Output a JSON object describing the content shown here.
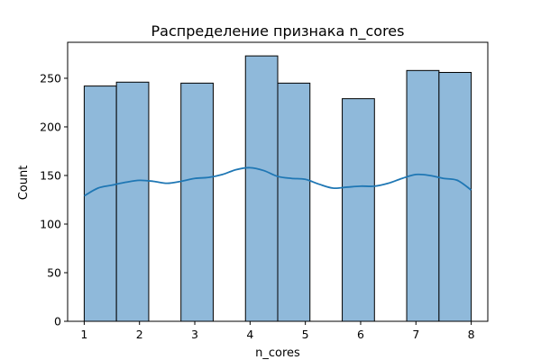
{
  "chart_data": {
    "type": "bar",
    "title": "Распределение признака n_cores",
    "xlabel": "n_cores",
    "ylabel": "Count",
    "xlim": [
      0.7,
      8.3
    ],
    "ylim": [
      0,
      287
    ],
    "x_ticks": [
      1,
      2,
      3,
      4,
      5,
      6,
      7,
      8
    ],
    "y_ticks": [
      0,
      50,
      100,
      150,
      200,
      250
    ],
    "bins": [
      {
        "x0": 1.0,
        "x1": 1.583,
        "count": 242
      },
      {
        "x0": 1.583,
        "x1": 2.167,
        "count": 246
      },
      {
        "x0": 2.75,
        "x1": 3.333,
        "count": 245
      },
      {
        "x0": 3.917,
        "x1": 4.5,
        "count": 273
      },
      {
        "x0": 4.5,
        "x1": 5.083,
        "count": 245
      },
      {
        "x0": 5.667,
        "x1": 6.25,
        "count": 229
      },
      {
        "x0": 6.833,
        "x1": 7.417,
        "count": 258
      },
      {
        "x0": 7.417,
        "x1": 8.0,
        "count": 256
      }
    ],
    "kde": {
      "x": [
        1.0,
        1.25,
        1.5,
        1.75,
        2.0,
        2.25,
        2.5,
        2.75,
        3.0,
        3.25,
        3.5,
        3.75,
        4.0,
        4.25,
        4.5,
        4.75,
        5.0,
        5.25,
        5.5,
        5.75,
        6.0,
        6.25,
        6.5,
        6.75,
        7.0,
        7.25,
        7.5,
        7.75,
        8.0
      ],
      "y": [
        129,
        137,
        140,
        143,
        145,
        144,
        142,
        144,
        147,
        148,
        151,
        156,
        158,
        155,
        149,
        147,
        146,
        141,
        137,
        138,
        139,
        139,
        142,
        147,
        151,
        150,
        147,
        145,
        135
      ]
    },
    "grid": false,
    "colors": {
      "bar_fill": "#8fb9da",
      "bar_edge": "#000000",
      "kde_line": "#1f77b4",
      "axes": "#000000"
    }
  }
}
